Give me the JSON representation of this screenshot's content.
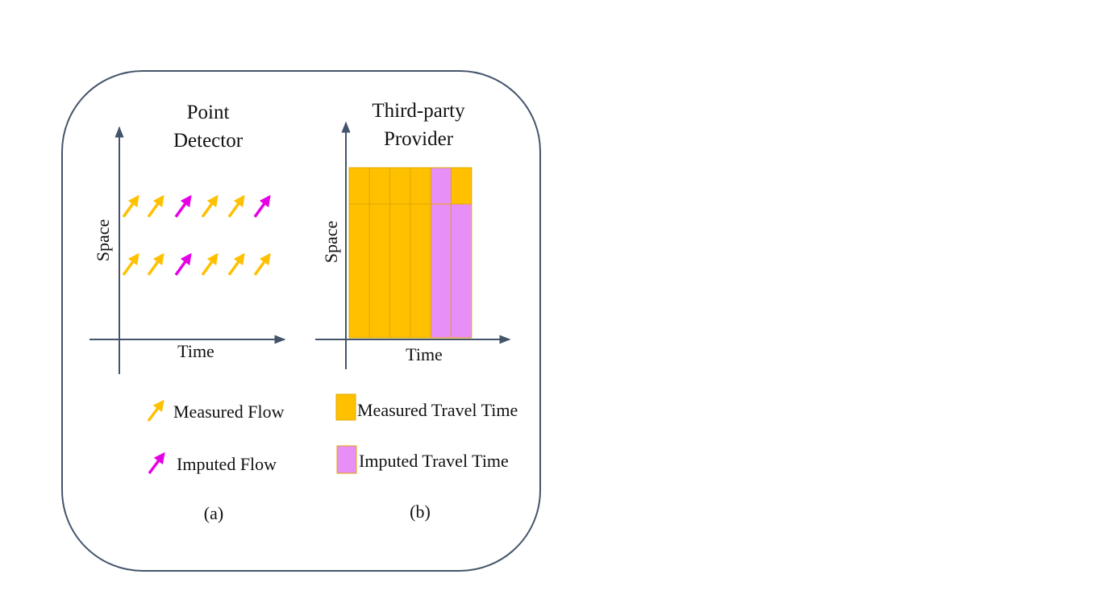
{
  "panel_a": {
    "title_line1": "Point",
    "title_line2": "Detector",
    "x_axis_label": "Time",
    "y_axis_label": "Space",
    "caption": "(a)",
    "rows": [
      [
        "measured",
        "measured",
        "imputed",
        "measured",
        "measured",
        "imputed"
      ],
      [
        "measured",
        "measured",
        "imputed",
        "measured",
        "measured",
        "measured"
      ]
    ],
    "legend": [
      {
        "kind": "measured",
        "label": "Measured Flow"
      },
      {
        "kind": "imputed",
        "label": "Imputed Flow"
      }
    ]
  },
  "panel_b": {
    "title_line1": "Third-party",
    "title_line2": "Provider",
    "x_axis_label": "Time",
    "y_axis_label": "Space",
    "caption": "(b)",
    "grid": {
      "top_row": [
        "measured",
        "measured",
        "measured",
        "measured",
        "imputed",
        "measured"
      ],
      "bottom_row": [
        "measured",
        "measured",
        "measured",
        "measured",
        "imputed",
        "imputed"
      ]
    },
    "legend": [
      {
        "kind": "measured",
        "label": "Measured Travel Time"
      },
      {
        "kind": "imputed",
        "label": "Imputed Travel Time"
      }
    ]
  },
  "colors": {
    "measured": "#FFC000",
    "imputed": "#E600E6",
    "imputed_fill": "#E88EF7",
    "axis": "#44546A",
    "frame": "#44546A"
  }
}
